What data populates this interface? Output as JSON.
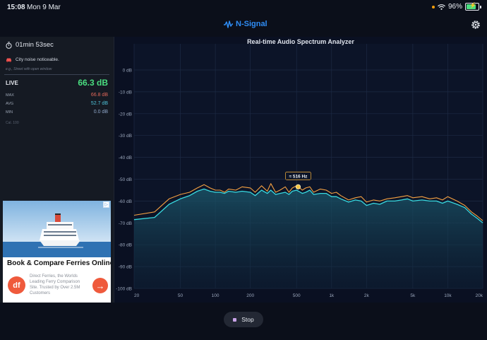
{
  "status_bar": {
    "time": "15:08",
    "date": "Mon 9 Mar",
    "battery_text": "96%",
    "battery_level": 0.96
  },
  "header": {
    "app_name": "N-Signal",
    "logo_icon": "waveform-icon",
    "settings_icon": "gear-icon"
  },
  "sidebar": {
    "timer": "01min 53sec",
    "timer_icon": "stopwatch-icon",
    "note": "City noise noticeable.",
    "note_icon": "car-icon",
    "note_hint": "e.g., Street with open window",
    "live_label": "LIVE",
    "live_value": "66.3 dB",
    "stats": [
      {
        "label": "MAX",
        "value": "66.8 dB",
        "color": "#e2685a"
      },
      {
        "label": "AVG",
        "value": "52.7 dB",
        "color": "#4fc3d9"
      },
      {
        "label": "MIN",
        "value": "0.0 dB",
        "color": "#8fa7c9"
      }
    ],
    "calibration": "Cal. 100"
  },
  "ad": {
    "title": "Book & Compare Ferries Online",
    "logo_text": "df",
    "description": "Direct Ferries, the Worlds Leading Ferry Comparison Site. Trusted by Over 2.5M Customers",
    "badge": "▷"
  },
  "chart_data": {
    "type": "line",
    "title": "Real-time Audio Spectrum Analyzer",
    "x_scale": "log",
    "xlim": [
      20,
      20000
    ],
    "ylim": [
      -100,
      0
    ],
    "x_ticks": [
      "20",
      "50",
      "100",
      "200",
      "500",
      "1k",
      "2k",
      "5k",
      "10k",
      "20k"
    ],
    "x_tick_values": [
      20,
      50,
      100,
      200,
      500,
      1000,
      2000,
      5000,
      10000,
      20000
    ],
    "y_ticks": [
      "0 dB",
      "-10 dB",
      "-20 dB",
      "-30 dB",
      "-40 dB",
      "-50 dB",
      "-60 dB",
      "-70 dB",
      "-80 dB",
      "-90 dB",
      "-100 dB"
    ],
    "y_tick_values": [
      0,
      -10,
      -20,
      -30,
      -40,
      -50,
      -60,
      -70,
      -80,
      -90,
      -100
    ],
    "grid": true,
    "peak_label": "≈ 516 Hz",
    "peak": {
      "x": 516,
      "y": -53.5
    },
    "series": [
      {
        "color": "#f5a142",
        "x": [
          20,
          30,
          40,
          50,
          60,
          70,
          80,
          90,
          100,
          110,
          120,
          130,
          150,
          170,
          200,
          220,
          250,
          280,
          300,
          330,
          360,
          400,
          430,
          460,
          500,
          520,
          560,
          600,
          650,
          700,
          800,
          900,
          1000,
          1100,
          1200,
          1400,
          1600,
          1800,
          2000,
          2300,
          2600,
          3000,
          3500,
          4000,
          4500,
          5000,
          6000,
          7000,
          8000,
          9000,
          10000,
          12000,
          14000,
          16000,
          18000,
          20000
        ],
        "y": [
          -66.5,
          -65,
          -59,
          -57,
          -56,
          -54,
          -52.5,
          -54,
          -55,
          -55,
          -56,
          -54.5,
          -55,
          -53.5,
          -54,
          -56,
          -53,
          -55.5,
          -52,
          -56,
          -55,
          -53.5,
          -56,
          -54,
          -53,
          -53.5,
          -55,
          -54,
          -53.5,
          -56,
          -54.5,
          -55,
          -56.5,
          -56,
          -57.5,
          -59.5,
          -58.5,
          -58,
          -60.5,
          -59.5,
          -60,
          -59,
          -58.5,
          -58,
          -57.5,
          -58.5,
          -58,
          -59,
          -58.5,
          -59.5,
          -58,
          -60,
          -62,
          -65,
          -67,
          -69
        ]
      },
      {
        "color": "#38d9e0",
        "x": [
          20,
          30,
          40,
          50,
          60,
          70,
          80,
          90,
          100,
          110,
          120,
          130,
          150,
          170,
          200,
          220,
          250,
          280,
          300,
          330,
          360,
          400,
          430,
          460,
          500,
          520,
          560,
          600,
          650,
          700,
          800,
          900,
          1000,
          1100,
          1200,
          1400,
          1600,
          1800,
          2000,
          2300,
          2600,
          3000,
          3500,
          4000,
          4500,
          5000,
          6000,
          7000,
          8000,
          9000,
          10000,
          12000,
          14000,
          16000,
          18000,
          20000
        ],
        "y": [
          -68.5,
          -67.5,
          -61.5,
          -59,
          -57.5,
          -55.5,
          -54.5,
          -55.5,
          -56,
          -56,
          -56.5,
          -55.5,
          -56,
          -55.5,
          -56,
          -57.5,
          -55,
          -56.5,
          -55,
          -57,
          -56.5,
          -56,
          -57,
          -55.5,
          -55,
          -55.5,
          -56.5,
          -56,
          -55,
          -57,
          -56.5,
          -56.5,
          -58,
          -58,
          -59,
          -60.5,
          -59.5,
          -60,
          -62,
          -61,
          -61.5,
          -60,
          -60,
          -59.5,
          -59,
          -60,
          -59.5,
          -60,
          -60,
          -61,
          -60,
          -61.5,
          -63,
          -66,
          -68,
          -70
        ]
      }
    ]
  },
  "controls": {
    "stop_label": "Stop"
  }
}
